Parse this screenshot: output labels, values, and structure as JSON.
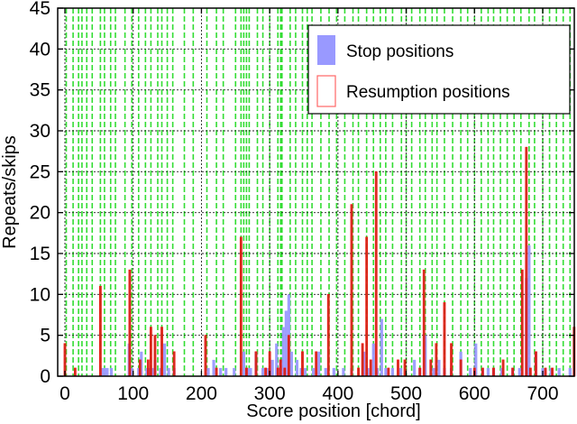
{
  "chart_data": {
    "type": "bar",
    "title": "",
    "xlabel": "Score position [chord]",
    "ylabel": "Repeats/skips",
    "xlim": [
      -10,
      767
    ],
    "ylim": [
      0,
      45
    ],
    "xticks": [
      0,
      100,
      200,
      300,
      400,
      500,
      600,
      700
    ],
    "yticks": [
      0,
      5,
      10,
      15,
      20,
      25,
      30,
      35,
      40,
      45
    ],
    "grid": true,
    "legend_position": "upper right",
    "legend": [
      "Stop positions",
      "Resumption positions"
    ],
    "colors": {
      "stop": "#9999ff",
      "resumption": "#ff0000",
      "boundary_lines": "#33dd33",
      "grid": "#000000"
    },
    "boundary_lines_x": [
      2,
      12,
      20,
      25,
      32,
      40,
      52,
      58,
      67,
      74,
      88,
      98,
      108,
      118,
      126,
      136,
      142,
      150,
      158,
      175,
      188,
      208,
      222,
      232,
      250,
      258,
      262,
      266,
      270,
      282,
      290,
      300,
      312,
      316,
      318,
      330,
      338,
      348,
      355,
      362,
      375,
      387,
      398,
      410,
      422,
      430,
      442,
      452,
      462,
      470,
      480,
      493,
      500,
      508,
      520,
      528,
      538,
      545,
      556,
      568,
      580,
      590,
      600,
      610,
      620,
      628,
      638,
      648,
      658,
      668,
      680,
      688,
      700,
      710,
      720,
      730,
      740,
      748,
      758
    ],
    "series": [
      {
        "name": "Stop positions",
        "x": [
          54,
          58,
          62,
          68,
          94,
          98,
          108,
          112,
          120,
          124,
          128,
          132,
          140,
          146,
          152,
          160,
          210,
          218,
          228,
          236,
          248,
          262,
          268,
          272,
          280,
          290,
          298,
          304,
          310,
          316,
          320,
          324,
          328,
          332,
          340,
          346,
          352,
          364,
          372,
          382,
          394,
          408,
          420,
          438,
          444,
          452,
          458,
          464,
          470,
          480,
          492,
          512,
          520,
          528,
          540,
          548,
          556,
          566,
          580,
          594,
          602,
          612,
          620,
          628,
          640,
          656,
          666,
          676,
          680,
          690,
          700,
          712,
          724,
          740,
          752,
          760
        ],
        "values": [
          1,
          1,
          1,
          1,
          4,
          1,
          1,
          3,
          1,
          1,
          1,
          2,
          1,
          4,
          1,
          1,
          1,
          2,
          1,
          1,
          1,
          3,
          1,
          1,
          3,
          1,
          1,
          2,
          4,
          2,
          6,
          8,
          10,
          3,
          2,
          1,
          1,
          1,
          3,
          1,
          1,
          1,
          1,
          3,
          1,
          4,
          1,
          7,
          1,
          1,
          1,
          2,
          1,
          5,
          1,
          2,
          1,
          1,
          3,
          1,
          4,
          1,
          1,
          1,
          1,
          1,
          1,
          12,
          16,
          3,
          1,
          1,
          1,
          1,
          2,
          7
        ]
      },
      {
        "name": "Resumption positions",
        "x": [
          0,
          15,
          52,
          95,
          110,
          122,
          126,
          132,
          142,
          160,
          206,
          222,
          258,
          266,
          280,
          294,
          300,
          312,
          316,
          322,
          328,
          348,
          368,
          386,
          420,
          430,
          436,
          442,
          448,
          456,
          474,
          488,
          498,
          520,
          526,
          536,
          544,
          556,
          566,
          580,
          600,
          612,
          628,
          642,
          656,
          670,
          676,
          682,
          690,
          704,
          714,
          746,
          758
        ],
        "values": [
          4,
          1,
          11,
          13,
          2,
          2,
          6,
          5,
          6,
          3,
          5,
          1,
          17,
          1,
          3,
          1,
          3,
          1,
          2,
          1,
          5,
          3,
          3,
          10,
          21,
          1,
          4,
          17,
          2,
          25,
          1,
          2,
          2,
          1,
          13,
          2,
          4,
          9,
          4,
          2,
          1,
          1,
          1,
          2,
          1,
          13,
          28,
          1,
          3,
          1,
          1,
          6,
          5
        ]
      }
    ]
  },
  "legend": {
    "stop_label": "Stop positions",
    "resumption_label": "Resumption positions"
  },
  "axes": {
    "xlabel": "Score position [chord]",
    "ylabel": "Repeats/skips"
  }
}
